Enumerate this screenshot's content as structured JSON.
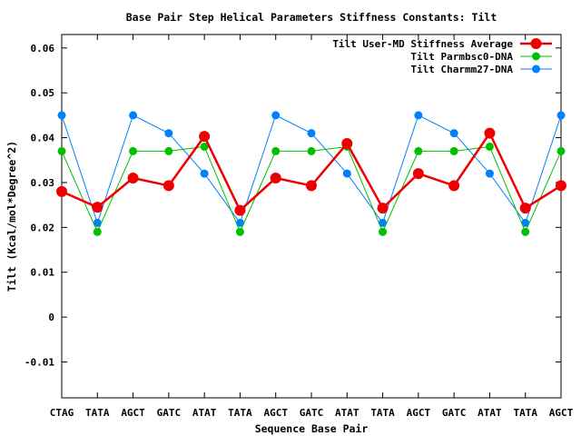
{
  "chart_data": {
    "type": "line",
    "title": "Base Pair Step Helical Parameters Stiffness Constants: Tilt",
    "xlabel": "Sequence Base Pair",
    "ylabel": "Tilt (Kcal/mol*Degree^2)",
    "categories": [
      "CTAG",
      "TATA",
      "AGCT",
      "GATC",
      "ATAT",
      "TATA",
      "AGCT",
      "GATC",
      "ATAT",
      "TATA",
      "AGCT",
      "GATC",
      "ATAT",
      "TATA",
      "AGCT"
    ],
    "ylim": [
      -0.018,
      0.063
    ],
    "yticks": [
      -0.01,
      0,
      0.01,
      0.02,
      0.03,
      0.04,
      0.05,
      0.06
    ],
    "ytick_labels": [
      "-0.01",
      "0",
      "0.01",
      "0.02",
      "0.03",
      "0.04",
      "0.05",
      "0.06"
    ],
    "grid": false,
    "legend_position": "top-right",
    "series": [
      {
        "name": "Tilt User-MD Stiffness Average",
        "color": "#ee0000",
        "values": [
          0.028,
          0.0245,
          0.031,
          0.0293,
          0.0403,
          0.0238,
          0.031,
          0.0293,
          0.0387,
          0.0243,
          0.032,
          0.0293,
          0.041,
          0.0243,
          0.0293
        ]
      },
      {
        "name": "Tilt Parmbsc0-DNA",
        "color": "#00c000",
        "values": [
          0.037,
          0.019,
          0.037,
          0.037,
          0.038,
          0.019,
          0.037,
          0.037,
          0.038,
          0.019,
          0.037,
          0.037,
          0.038,
          0.019,
          0.037
        ]
      },
      {
        "name": "Tilt Charmm27-DNA",
        "color": "#0080ff",
        "values": [
          0.045,
          0.021,
          0.045,
          0.041,
          0.032,
          0.021,
          0.045,
          0.041,
          0.032,
          0.021,
          0.045,
          0.041,
          0.032,
          0.021,
          0.045
        ]
      }
    ]
  }
}
